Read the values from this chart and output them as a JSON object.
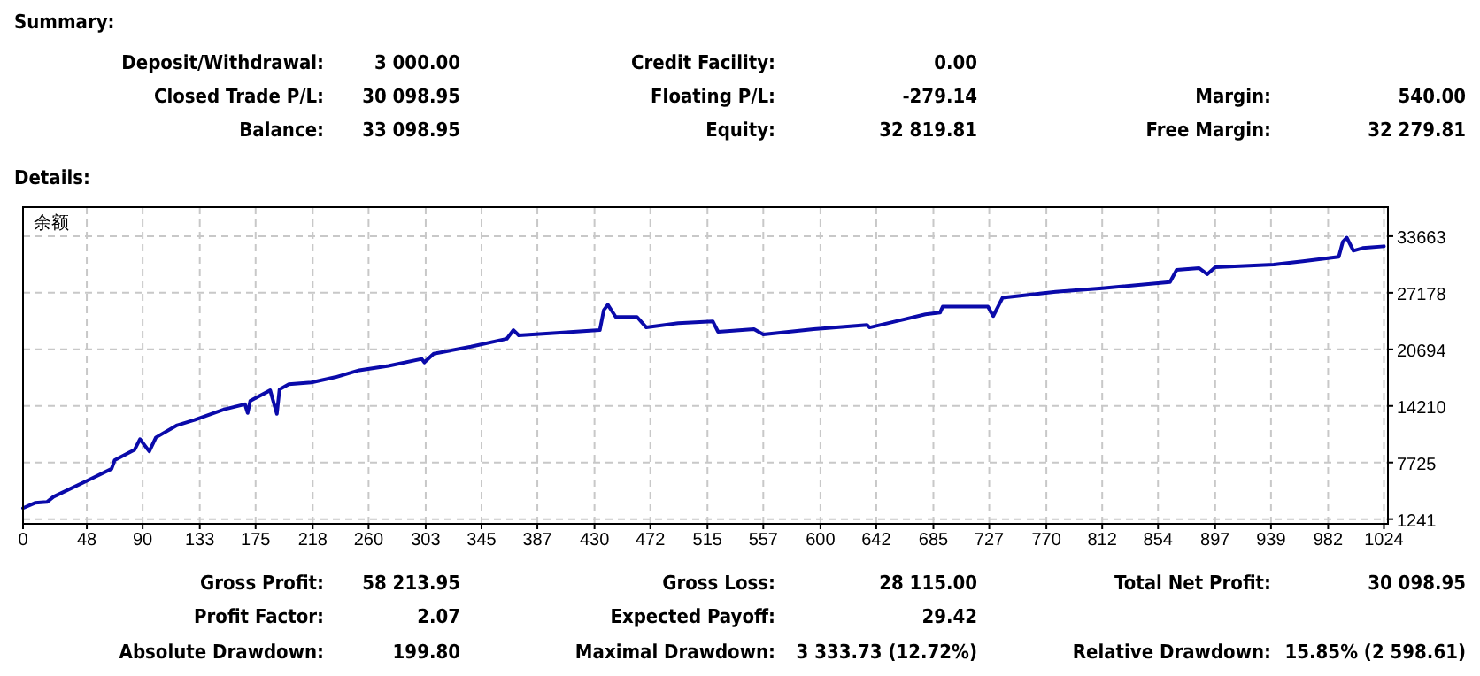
{
  "chart_data": {
    "type": "line",
    "title": "余额",
    "annotations": [
      "Summary:",
      "Deposit/Withdrawal:",
      "3 000.00",
      "Credit Facility:",
      "0.00",
      "Closed Trade P/L:",
      "30 098.95",
      "Floating P/L:",
      "-279.14",
      "Margin:",
      "540.00",
      "Balance:",
      "33 098.95",
      "Equity:",
      "32 819.81",
      "Free Margin:",
      "32 279.81",
      "Details:",
      "Gross Profit:",
      "58 213.95",
      "Gross Loss:",
      "28 115.00",
      "Total Net Profit:",
      "30 098.95",
      "Profit Factor:",
      "2.07",
      "Expected Payoff:",
      "29.42",
      "Absolute Drawdown:",
      "199.80",
      "Maximal Drawdown:",
      "3 333.73 (12.72%)",
      "Relative Drawdown:",
      "15.85% (2 598.61)"
    ],
    "series": [
      {
        "color": "#0a0aaa",
        "x": [
          0,
          9,
          18,
          23,
          49,
          66.6,
          69,
          84,
          88,
          95,
          100,
          116,
          129,
          151,
          167,
          169,
          171,
          186,
          191,
          193,
          200,
          217,
          235,
          253,
          275,
          300,
          302,
          309,
          337,
          364,
          369,
          373,
          404,
          434,
          437,
          440,
          446,
          462,
          469,
          493,
          519,
          523,
          541,
          550,
          557,
          595,
          635,
          637,
          679,
          690,
          692,
          726,
          730,
          737,
          777,
          812,
          863,
          868,
          885,
          891,
          897,
          941,
          963,
          990,
          993,
          996,
          1001,
          1008,
          1024
        ],
        "values": [
          2500,
          3100,
          3200,
          3800,
          5700,
          7000,
          8000,
          9200,
          10400,
          9000,
          10600,
          12000,
          12600,
          13800,
          14400,
          13400,
          14800,
          16000,
          13300,
          16100,
          16700,
          16900,
          17500,
          18300,
          18800,
          19600,
          19200,
          20200,
          21000,
          21900,
          22900,
          22300,
          22600,
          22900,
          25200,
          25800,
          24400,
          24400,
          23200,
          23700,
          23900,
          22700,
          22900,
          23000,
          22400,
          23000,
          23500,
          23200,
          24700,
          24900,
          25600,
          25600,
          24500,
          26600,
          27300,
          27700,
          28400,
          29800,
          30000,
          29300,
          30100,
          30400,
          30800,
          31300,
          33000,
          33500,
          32000,
          32300,
          32500
        ]
      }
    ],
    "xlim": [
      0,
      1027
    ],
    "ylim": [
      700,
      37000
    ],
    "xticks": [
      0,
      48,
      90,
      133,
      175,
      218,
      260,
      303,
      345,
      387,
      430,
      472,
      515,
      557,
      600,
      642,
      685,
      727,
      770,
      812,
      854,
      897,
      939,
      982,
      1024
    ],
    "yticks": [
      1241,
      7725,
      14210,
      20694,
      27178,
      33663
    ],
    "grid": true,
    "marker": "none",
    "line_style": "solid"
  }
}
